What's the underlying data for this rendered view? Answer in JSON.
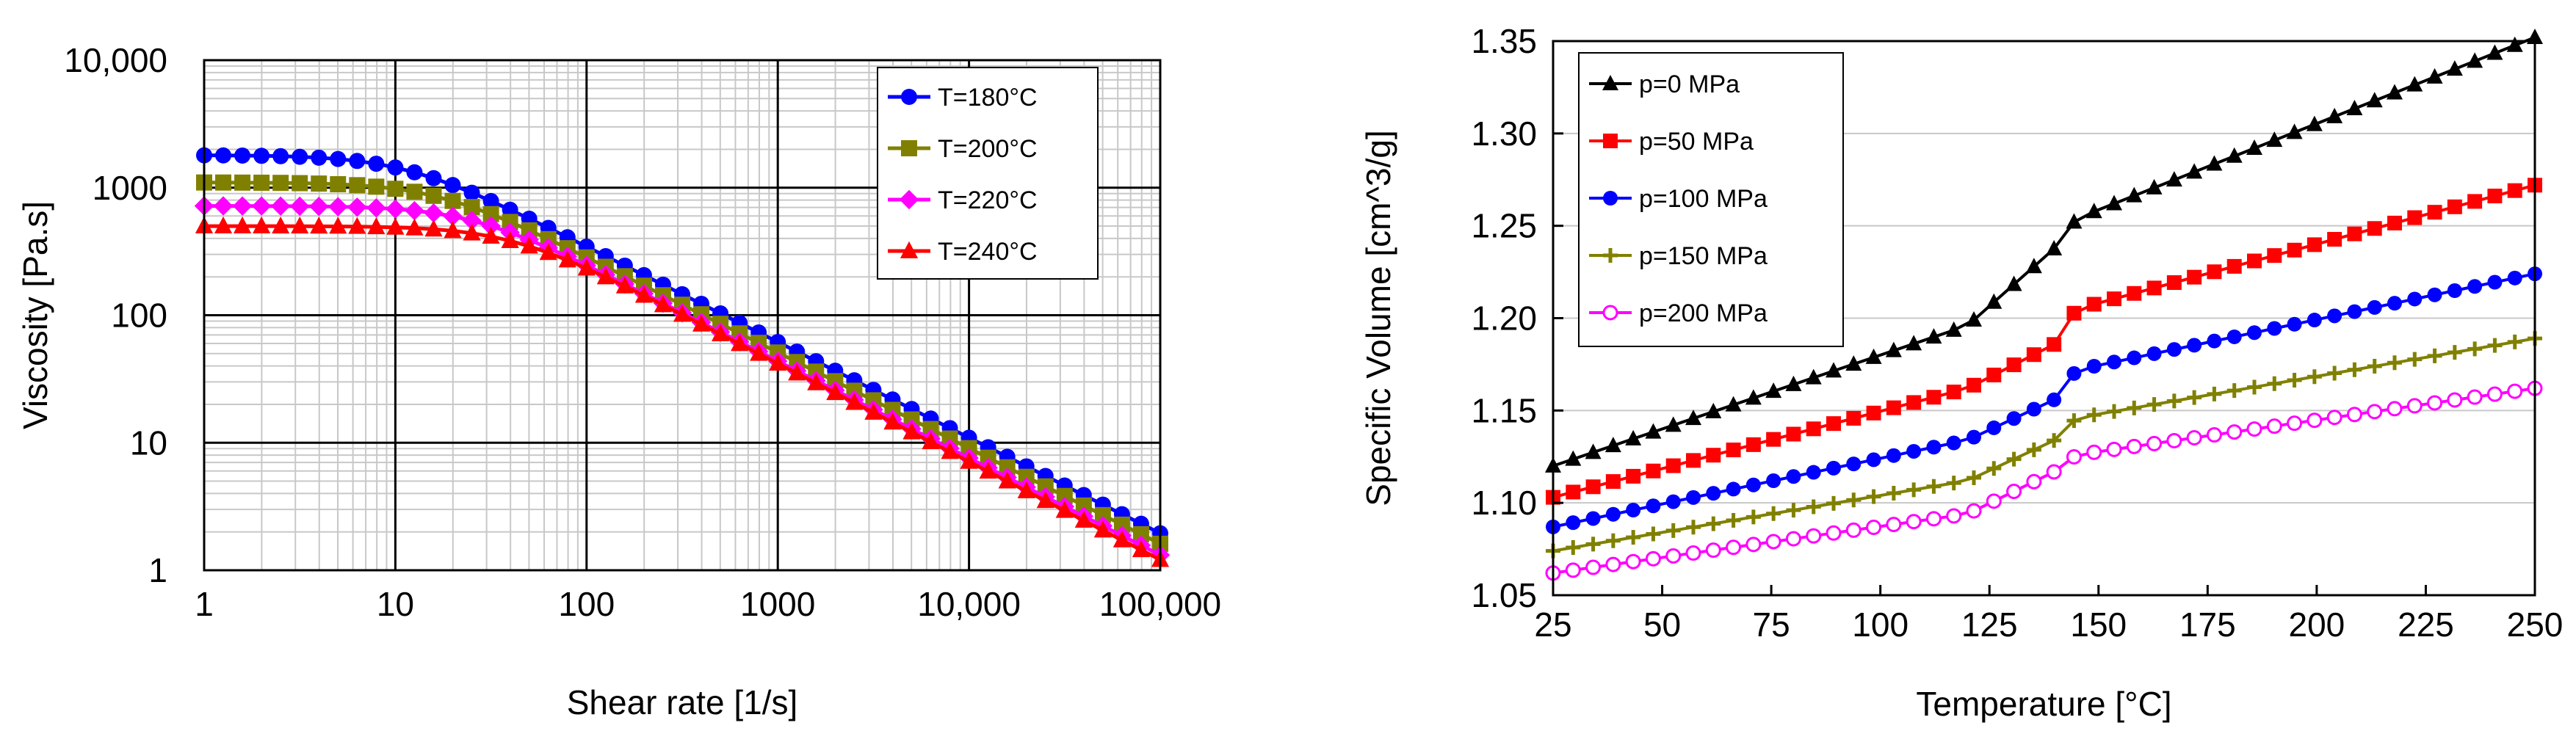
{
  "chart_data": [
    {
      "type": "line",
      "title": "",
      "xlabel": "Shear rate [1/s]",
      "ylabel": "Viscosity [Pa.s]",
      "xscale": "log",
      "yscale": "log",
      "xlim": [
        1,
        100000
      ],
      "ylim": [
        1,
        10000
      ],
      "x_ticks": [
        1,
        10,
        100,
        1000,
        10000,
        100000
      ],
      "x_tick_labels": [
        "1",
        "10",
        "100",
        "1000",
        "10,000",
        "100,000"
      ],
      "y_ticks": [
        1,
        10,
        100,
        1000,
        10000
      ],
      "y_tick_labels": [
        "1",
        "10",
        "100",
        "1000",
        "10,000"
      ],
      "grid": true,
      "legend_position": "top-right",
      "series": [
        {
          "name": "T=180°C",
          "color": "#0000ff",
          "marker": "circle",
          "eta0": 1800,
          "lambda": 0.09,
          "n": 0.25
        },
        {
          "name": "T=200°C",
          "color": "#808000",
          "marker": "square",
          "eta0": 1100,
          "lambda": 0.06,
          "n": 0.25
        },
        {
          "name": "T=220°C",
          "color": "#ff00ff",
          "marker": "diamond",
          "eta0": 720,
          "lambda": 0.04,
          "n": 0.24
        },
        {
          "name": "T=240°C",
          "color": "#ff0000",
          "marker": "triangle",
          "eta0": 500,
          "lambda": 0.025,
          "n": 0.23
        }
      ],
      "x_points_per_series": 51
    },
    {
      "type": "line",
      "title": "",
      "xlabel": "Temperature [°C]",
      "ylabel": "Specific Volume [cm^3/g]",
      "xlim": [
        25,
        250
      ],
      "ylim": [
        1.05,
        1.35
      ],
      "x_ticks": [
        25,
        50,
        75,
        100,
        125,
        150,
        175,
        200,
        225,
        250
      ],
      "x_tick_labels": [
        "25",
        "50",
        "75",
        "100",
        "125",
        "150",
        "175",
        "200",
        "225",
        "250"
      ],
      "y_ticks": [
        1.05,
        1.1,
        1.15,
        1.2,
        1.25,
        1.3,
        1.35
      ],
      "y_tick_labels": [
        "1.05",
        "1.10",
        "1.15",
        "1.20",
        "1.25",
        "1.30",
        "1.35"
      ],
      "grid": "horizontal",
      "legend_position": "top-left",
      "series": [
        {
          "name": "p=0 MPa",
          "color": "#000000",
          "marker": "triangle",
          "x": [
            25,
            120,
            140,
            145,
            250
          ],
          "y": [
            1.12,
            1.196,
            1.238,
            1.254,
            1.352
          ]
        },
        {
          "name": "p=50 MPa",
          "color": "#ff0000",
          "marker": "square",
          "x": [
            25,
            120,
            140,
            145,
            250
          ],
          "y": [
            1.103,
            1.162,
            1.186,
            1.205,
            1.272
          ]
        },
        {
          "name": "p=100 MPa",
          "color": "#0000ff",
          "marker": "circle",
          "x": [
            25,
            120,
            140,
            145,
            250
          ],
          "y": [
            1.087,
            1.134,
            1.156,
            1.172,
            1.224
          ]
        },
        {
          "name": "p=150 MPa",
          "color": "#808000",
          "marker": "plus",
          "x": [
            25,
            120,
            140,
            145,
            250
          ],
          "y": [
            1.074,
            1.112,
            1.134,
            1.146,
            1.189
          ]
        },
        {
          "name": "p=200 MPa",
          "color": "#ff00ff",
          "marker": "open-circle",
          "x": [
            25,
            120,
            140,
            145,
            250
          ],
          "y": [
            1.062,
            1.094,
            1.117,
            1.126,
            1.162
          ]
        }
      ],
      "points_per_series": 50
    }
  ]
}
